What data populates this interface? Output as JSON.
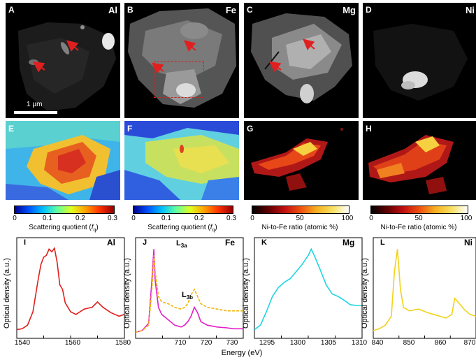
{
  "figure": {
    "row1": [
      {
        "letter": "A",
        "element": "Al"
      },
      {
        "letter": "B",
        "element": "Fe"
      },
      {
        "letter": "C",
        "element": "Mg"
      },
      {
        "letter": "D",
        "element": "Ni"
      }
    ],
    "scale_bar": "1 µm",
    "row2_letters": [
      "E",
      "F",
      "G",
      "H"
    ],
    "colorbars": [
      {
        "ticks": [
          "0",
          "0.1",
          "0.2",
          "0.3"
        ],
        "label_main": "Scattering quotient (",
        "label_italic": "f",
        "label_sub": "q",
        "label_end": ")"
      },
      {
        "ticks": [
          "0",
          "0.1",
          "0.2",
          "0.3"
        ],
        "label_main": "Scattering quotient (",
        "label_italic": "f",
        "label_sub": "q",
        "label_end": ")"
      },
      {
        "ticks": [
          "0",
          "50",
          "100"
        ],
        "label_main": "Ni-to-Fe ratio (atomic %)",
        "label_italic": "",
        "label_sub": "",
        "label_end": ""
      },
      {
        "ticks": [
          "0",
          "50",
          "100"
        ],
        "label_main": "Ni-to-Fe ratio (atomic %)",
        "label_italic": "",
        "label_sub": "",
        "label_end": ""
      }
    ],
    "spectra": [
      {
        "letter": "I",
        "element": "Al",
        "xticks": [
          "1540",
          "1560",
          "1580"
        ]
      },
      {
        "letter": "J",
        "element": "Fe",
        "xticks": [
          "710",
          "720",
          "730"
        ],
        "peak_a": "L",
        "peak_a_sub": "3a",
        "peak_b": "L",
        "peak_b_sub": "3b"
      },
      {
        "letter": "K",
        "element": "Mg",
        "xticks": [
          "1295",
          "1300",
          "1305",
          "1310"
        ]
      },
      {
        "letter": "L",
        "element": "Ni",
        "xticks": [
          "840",
          "850",
          "860",
          "870"
        ]
      }
    ],
    "ylabel": "Optical density (a.u.)",
    "xlabel": "Energy (eV)",
    "colors": {
      "al_line": "#e0201c",
      "fe_line": "#e020c8",
      "fe_dashed": "#f5b400",
      "mg_line": "#1ed6e0",
      "ni_line": "#f2d21a",
      "arrow": "#e02020"
    }
  },
  "chart_data": [
    {
      "type": "line",
      "panel": "I",
      "element": "Al",
      "xlim": [
        1540,
        1580
      ],
      "series": [
        {
          "x": [
            1540,
            1542,
            1544,
            1546,
            1548,
            1549,
            1550,
            1551,
            1552,
            1553,
            1554,
            1555,
            1556,
            1557,
            1558,
            1560,
            1562,
            1565,
            1568,
            1570,
            1572,
            1575,
            1578,
            1580
          ],
          "y": [
            0.05,
            0.06,
            0.1,
            0.25,
            0.62,
            0.78,
            0.86,
            0.88,
            0.95,
            0.92,
            0.96,
            0.8,
            0.55,
            0.5,
            0.35,
            0.25,
            0.22,
            0.28,
            0.3,
            0.36,
            0.3,
            0.24,
            0.2,
            0.22
          ]
        }
      ]
    },
    {
      "type": "line",
      "panel": "J",
      "element": "Fe",
      "xlim": [
        700,
        733
      ],
      "series": [
        {
          "x": [
            700,
            702,
            704,
            705,
            705.6,
            706,
            707,
            708,
            710,
            712,
            714,
            715,
            716,
            717,
            718,
            719,
            720,
            722,
            725,
            728,
            730,
            733
          ],
          "y": [
            0.02,
            0.04,
            0.12,
            0.6,
            0.95,
            0.6,
            0.3,
            0.22,
            0.16,
            0.1,
            0.08,
            0.1,
            0.14,
            0.2,
            0.3,
            0.24,
            0.14,
            0.1,
            0.08,
            0.07,
            0.06,
            0.06
          ]
        },
        {
          "x": [
            700,
            702,
            704,
            705,
            705.6,
            706,
            707,
            708,
            710,
            712,
            714,
            715,
            716,
            717,
            718,
            719,
            720,
            722,
            725,
            728,
            730,
            733
          ],
          "y": [
            0.02,
            0.04,
            0.1,
            0.5,
            0.88,
            0.7,
            0.42,
            0.36,
            0.34,
            0.3,
            0.28,
            0.3,
            0.34,
            0.44,
            0.5,
            0.42,
            0.34,
            0.3,
            0.28,
            0.26,
            0.26,
            0.26
          ]
        }
      ]
    },
    {
      "type": "line",
      "panel": "K",
      "element": "Mg",
      "xlim": [
        1293,
        1311
      ],
      "series": [
        {
          "x": [
            1293,
            1294,
            1295,
            1296,
            1297,
            1298,
            1299,
            1300,
            1301,
            1302,
            1302.5,
            1303,
            1304,
            1305,
            1306,
            1307,
            1308,
            1309,
            1310,
            1311
          ],
          "y": [
            0.05,
            0.1,
            0.25,
            0.42,
            0.52,
            0.58,
            0.62,
            0.7,
            0.78,
            0.88,
            0.95,
            0.88,
            0.72,
            0.55,
            0.45,
            0.42,
            0.38,
            0.33,
            0.32,
            0.32
          ]
        }
      ]
    },
    {
      "type": "line",
      "panel": "L",
      "element": "Ni",
      "xlim": [
        840,
        874
      ],
      "series": [
        {
          "x": [
            840,
            842,
            844,
            846,
            847,
            848,
            849,
            850,
            852,
            855,
            858,
            860,
            862,
            864,
            866,
            867,
            868,
            870,
            872,
            874
          ],
          "y": [
            0.04,
            0.06,
            0.1,
            0.2,
            0.7,
            0.95,
            0.5,
            0.3,
            0.26,
            0.28,
            0.24,
            0.22,
            0.2,
            0.18,
            0.22,
            0.4,
            0.36,
            0.28,
            0.22,
            0.2
          ]
        }
      ]
    }
  ]
}
